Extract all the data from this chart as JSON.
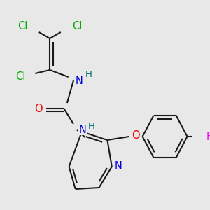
{
  "background_color": "#e8e8e8",
  "bond_color": "#1a1a1a",
  "figsize": [
    3.0,
    3.0
  ],
  "dpi": 100,
  "atom_colors": {
    "Cl": "#00aa00",
    "N": "#0000dd",
    "O": "#ee0000",
    "F": "#ee00ee",
    "H": "#007070",
    "C": "#1a1a1a"
  }
}
